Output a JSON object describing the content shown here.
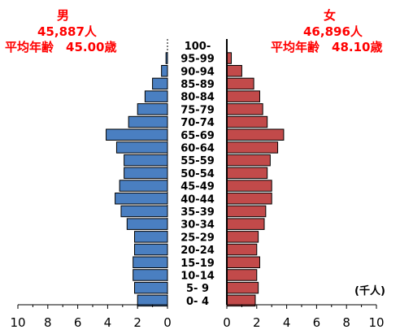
{
  "header": {
    "male_label": "男",
    "male_total": "45,887人",
    "male_avg": "平均年齢　45.00歳",
    "female_label": "女",
    "female_total": "46,896人",
    "female_avg": "平均年齢　48.10歳"
  },
  "unit_label": "(千人)",
  "colors": {
    "male": "#4a7fc1",
    "female": "#c24a4a",
    "header": "#ff0000"
  },
  "chart_data": {
    "type": "bar",
    "orientation": "horizontal",
    "layout": "population-pyramid",
    "categories": [
      "0- 4",
      "5- 9",
      "10-14",
      "15-19",
      "20-24",
      "25-29",
      "30-34",
      "35-39",
      "40-44",
      "45-49",
      "50-54",
      "55-59",
      "60-64",
      "65-69",
      "70-74",
      "75-79",
      "80-84",
      "85-89",
      "90-94",
      "95-99",
      "100-"
    ],
    "series": [
      {
        "name": "男",
        "values": [
          2.0,
          2.2,
          2.3,
          2.3,
          2.2,
          2.2,
          2.7,
          3.1,
          3.5,
          3.2,
          2.9,
          2.9,
          3.4,
          4.1,
          2.6,
          2.0,
          1.5,
          1.0,
          0.4,
          0.1,
          0.0
        ]
      },
      {
        "name": "女",
        "values": [
          1.9,
          2.1,
          2.0,
          2.2,
          2.0,
          2.1,
          2.5,
          2.6,
          3.0,
          3.0,
          2.7,
          2.9,
          3.4,
          3.8,
          2.7,
          2.4,
          2.2,
          1.8,
          1.0,
          0.3,
          0.0
        ]
      }
    ],
    "xlim": [
      0,
      10
    ],
    "x_ticks": [
      10,
      8,
      6,
      4,
      2,
      0
    ],
    "x_ticks_right": [
      0,
      2,
      4,
      6,
      8,
      10
    ]
  }
}
